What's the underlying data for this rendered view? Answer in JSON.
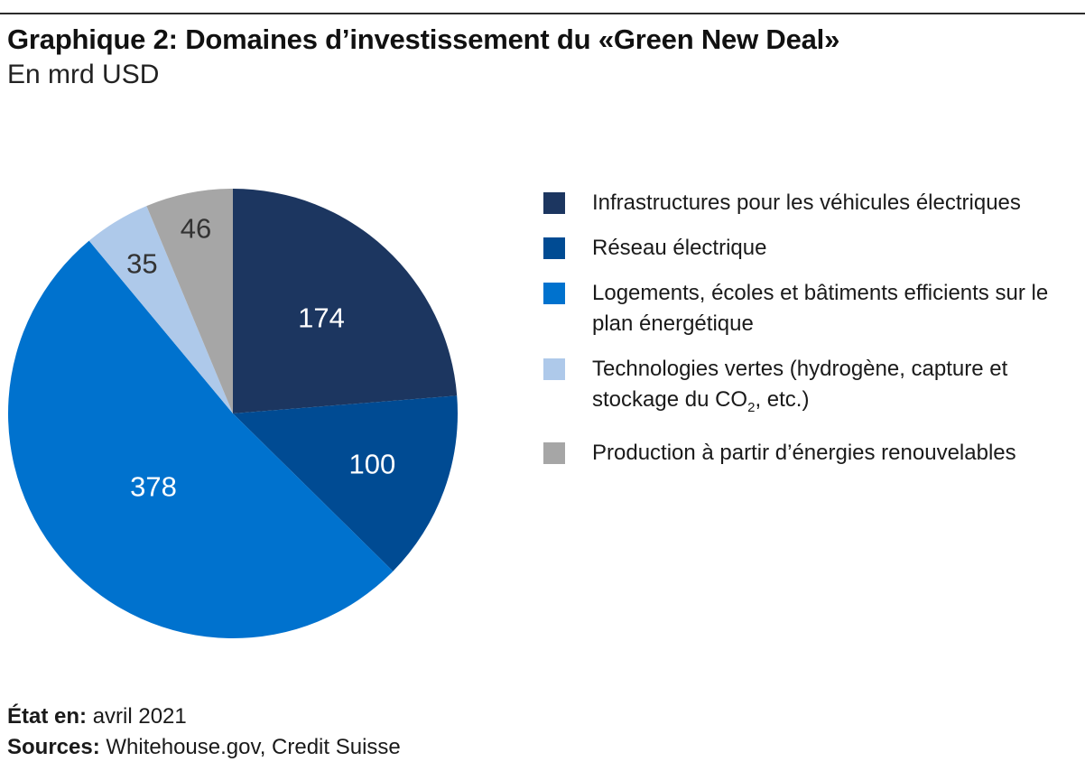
{
  "header": {
    "title": "Graphique 2: Domaines d’investissement du «Green New Deal»",
    "subtitle": "En mrd USD"
  },
  "chart_data": {
    "type": "pie",
    "title": "Graphique 2: Domaines d’investissement du «Green New Deal»",
    "subtitle": "En mrd USD",
    "categories": [
      "Infrastructures pour les véhicules électriques",
      "Réseau électrique",
      "Logements, écoles et bâtiments efficients sur le plan énergétique",
      "Technologies vertes (hydrogène, capture et stockage du CO2, etc.)",
      "Production à partir d’énergies renouvelables"
    ],
    "values": [
      174,
      100,
      378,
      35,
      46
    ],
    "colors": [
      "#1c3660",
      "#004b93",
      "#0072ce",
      "#aec9ea",
      "#a6a6a6"
    ],
    "label_colors": [
      "#ffffff",
      "#ffffff",
      "#ffffff",
      "#333333",
      "#333333"
    ],
    "start_angle_deg": 0,
    "direction": "clockwise",
    "legend_position": "right"
  },
  "legend": {
    "items": [
      {
        "label": "Infrastructures pour les véhicules électriques"
      },
      {
        "label": "Réseau électrique"
      },
      {
        "label": "Logements, écoles et bâtiments efficients sur le plan énergétique"
      },
      {
        "label_main": "Technologies vertes (hydrogène, capture et stockage du CO",
        "label_sub": "2",
        "label_tail": ", etc.)"
      },
      {
        "label": "Production à partir d’énergies renouvelables"
      }
    ]
  },
  "footer": {
    "status_label": "État en:",
    "status_value": "avril 2021",
    "sources_label": "Sources:",
    "sources_value": "Whitehouse.gov, Credit Suisse"
  }
}
